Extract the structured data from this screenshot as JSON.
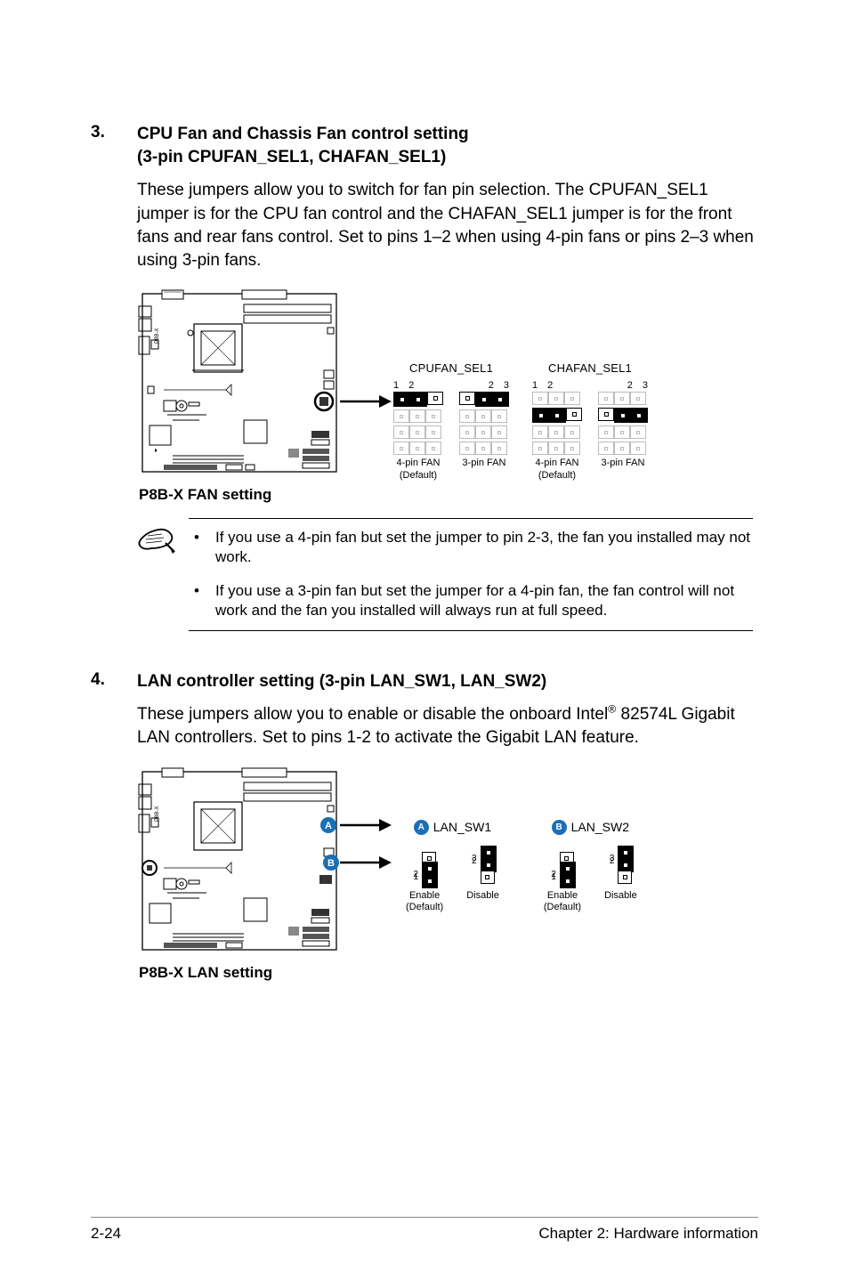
{
  "colors": {
    "badge_a": "#1a6fb5",
    "badge_b": "#1a6fb5",
    "filled": "#000000",
    "outline": "#000000",
    "faded": "#a8a8a8"
  },
  "section3": {
    "num": "3.",
    "title_line1": "CPU Fan and Chassis Fan control setting",
    "title_line2": "(3-pin CPUFAN_SEL1, CHAFAN_SEL1)",
    "body": "These jumpers allow you to switch for fan pin selection. The CPUFAN_SEL1 jumper is for the CPU fan control and the CHAFAN_SEL1 jumper is for the front fans and rear fans control. Set to pins 1–2 when using 4-pin fans or pins 2–3 when using 3-pin fans."
  },
  "fan_diagram": {
    "title": "P8B-X FAN setting",
    "groups": [
      {
        "label": "CPUFAN_SEL1",
        "units": [
          {
            "pins": "1  2",
            "pin_side": "left",
            "rows": [
              {
                "cells": [
                  "filled",
                  "filled",
                  "open"
                ],
                "boxed": 2,
                "box_from": 0
              },
              {
                "cells": [
                  "faded",
                  "faded",
                  "faded"
                ]
              },
              {
                "cells": [
                  "faded",
                  "faded",
                  "faded"
                ]
              },
              {
                "cells": [
                  "faded",
                  "faded",
                  "faded"
                ]
              }
            ],
            "caption": "4-pin FAN\n(Default)"
          },
          {
            "pins": "2  3",
            "pin_side": "right",
            "rows": [
              {
                "cells": [
                  "open",
                  "filled",
                  "filled"
                ],
                "boxed": 2,
                "box_from": 1
              },
              {
                "cells": [
                  "faded",
                  "faded",
                  "faded"
                ]
              },
              {
                "cells": [
                  "faded",
                  "faded",
                  "faded"
                ]
              },
              {
                "cells": [
                  "faded",
                  "faded",
                  "faded"
                ]
              }
            ],
            "caption": "3-pin FAN"
          }
        ]
      },
      {
        "label": "CHAFAN_SEL1",
        "units": [
          {
            "pins": "1  2",
            "pin_side": "left",
            "rows": [
              {
                "cells": [
                  "faded",
                  "faded",
                  "faded"
                ]
              },
              {
                "cells": [
                  "filled",
                  "filled",
                  "open"
                ],
                "boxed": 2,
                "box_from": 0
              },
              {
                "cells": [
                  "faded",
                  "faded",
                  "faded"
                ]
              },
              {
                "cells": [
                  "faded",
                  "faded",
                  "faded"
                ]
              }
            ],
            "caption": "4-pin FAN\n(Default)"
          },
          {
            "pins": "2  3",
            "pin_side": "right",
            "rows": [
              {
                "cells": [
                  "faded",
                  "faded",
                  "faded"
                ]
              },
              {
                "cells": [
                  "open",
                  "filled",
                  "filled"
                ],
                "boxed": 2,
                "box_from": 1
              },
              {
                "cells": [
                  "faded",
                  "faded",
                  "faded"
                ]
              },
              {
                "cells": [
                  "faded",
                  "faded",
                  "faded"
                ]
              }
            ],
            "caption": "3-pin FAN"
          }
        ]
      }
    ]
  },
  "notes": {
    "items": [
      "If you use a 4-pin fan but set the jumper to pin 2-3, the fan you installed may not work.",
      "If you use a 3-pin fan but set the jumper for a 4-pin fan, the fan control will not work and the fan you installed will always run at full speed."
    ],
    "bullet": "•"
  },
  "section4": {
    "num": "4.",
    "title": "LAN controller setting (3-pin LAN_SW1, LAN_SW2)",
    "body_before": "These jumpers allow you to enable or disable the onboard Intel",
    "body_sup": "®",
    "body_after": " 82574L Gigabit LAN controllers. Set to pins 1-2 to activate the Gigabit LAN feature."
  },
  "lan_diagram": {
    "title": "P8B-X LAN setting",
    "badge_a_letter": "A",
    "badge_b_letter": "B",
    "groups": [
      {
        "badge": "A",
        "label": "LAN_SW1",
        "units": [
          {
            "nums_top": "",
            "col": [
              {
                "num": "",
                "cell": "open",
                "outlined": true
              },
              {
                "num": "2",
                "cell": "filled"
              },
              {
                "num": "1",
                "cell": "filled"
              }
            ],
            "box_span": [
              1,
              2
            ],
            "caption": "Enable\n(Default)"
          },
          {
            "col": [
              {
                "num": "3",
                "cell": "filled"
              },
              {
                "num": "2",
                "cell": "filled"
              },
              {
                "num": "",
                "cell": "open",
                "outlined": true
              }
            ],
            "box_span": [
              0,
              1
            ],
            "caption": "Disable"
          }
        ]
      },
      {
        "badge": "B",
        "label": "LAN_SW2",
        "units": [
          {
            "col": [
              {
                "num": "",
                "cell": "open",
                "outlined": true
              },
              {
                "num": "2",
                "cell": "filled"
              },
              {
                "num": "1",
                "cell": "filled"
              }
            ],
            "box_span": [
              1,
              2
            ],
            "caption": "Enable\n(Default)"
          },
          {
            "col": [
              {
                "num": "3",
                "cell": "filled"
              },
              {
                "num": "2",
                "cell": "filled"
              },
              {
                "num": "",
                "cell": "open",
                "outlined": true
              }
            ],
            "box_span": [
              0,
              1
            ],
            "caption": "Disable"
          }
        ]
      }
    ]
  },
  "footer": {
    "left": "2-24",
    "right": "Chapter 2: Hardware information"
  }
}
